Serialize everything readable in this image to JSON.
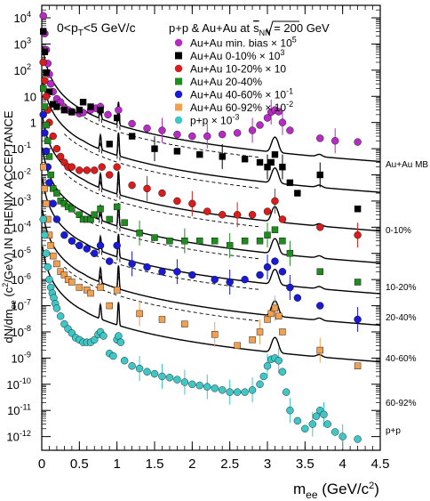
{
  "chart_data": {
    "type": "scatter",
    "title": "p+p & Au+Au at √sNN = 200 GeV",
    "subtitle": "0<pT<5 GeV/c",
    "title_prefix": "p+p & Au+Au at",
    "title_sqrt": "s",
    "title_sqrt_sub": "NN",
    "title_suffix": " = 200 GeV",
    "subtitle_pre": "0<p",
    "subtitle_sub": "T",
    "subtitle_post": "<5 GeV/c",
    "xlabel": "mee (GeV/c2)",
    "xlabel_main": "m",
    "xlabel_sub": "ee",
    "xlabel_unit_pre": " (GeV/c",
    "xlabel_unit_sup": "2",
    "xlabel_unit_post": ")",
    "ylabel": "dN/dmee (c2/GeV) IN PHENIX ACCEPTANCE",
    "ylabel_pre": "dN/dm",
    "ylabel_sub": "ee",
    "ylabel_mid": " (c",
    "ylabel_sup": "2",
    "ylabel_post": "/GeV) IN PHENIX ACCEPTANCE",
    "xlim": [
      0,
      4.5
    ],
    "ylim": [
      3e-13,
      30000
    ],
    "yscale": "log",
    "x_ticks": [
      0,
      0.5,
      1,
      1.5,
      2,
      2.5,
      3,
      3.5,
      4,
      4.5
    ],
    "x_tick_labels": [
      "0",
      "0.5",
      "1",
      "1.5",
      "2",
      "2.5",
      "3",
      "3.5",
      "4",
      "4.5"
    ],
    "y_ticks": [
      1e-12,
      1e-11,
      1e-10,
      1e-09,
      1e-08,
      1e-07,
      1e-06,
      1e-05,
      0.0001,
      0.001,
      0.01,
      0.1,
      1,
      10,
      100,
      1000,
      10000
    ],
    "y_tick_labels": [
      {
        "base": "10",
        "exp": "-12"
      },
      {
        "base": "10",
        "exp": "-11"
      },
      {
        "base": "10",
        "exp": "-10"
      },
      {
        "base": "10",
        "exp": "-9"
      },
      {
        "base": "10",
        "exp": "-8"
      },
      {
        "base": "10",
        "exp": "-7"
      },
      {
        "base": "10",
        "exp": "-6"
      },
      {
        "base": "10",
        "exp": "-5"
      },
      {
        "base": "10",
        "exp": "-4"
      },
      {
        "base": "10",
        "exp": "-3"
      },
      {
        "base": "10",
        "exp": "-2"
      },
      {
        "base": "10",
        "exp": "-1"
      },
      {
        "base": "1",
        "exp": ""
      },
      {
        "base": "10",
        "exp": ""
      },
      {
        "base": "10",
        "exp": "2"
      },
      {
        "base": "10",
        "exp": "3"
      },
      {
        "base": "10",
        "exp": "4"
      }
    ],
    "legend_position": "top-right",
    "series": [
      {
        "name": "Au+Au min. bias × 10^5",
        "legend_text": "Au+Au min. bias ×",
        "legend_exp": "10^5",
        "marker": "circle",
        "color": "#b52bc4",
        "side_label": "Au+Au MB",
        "x": [
          0.02,
          0.04,
          0.06,
          0.08,
          0.1,
          0.12,
          0.15,
          0.2,
          0.25,
          0.3,
          0.35,
          0.4,
          0.5,
          0.55,
          0.65,
          0.72,
          0.78,
          0.88,
          1.02,
          1.2,
          1.4,
          1.6,
          1.8,
          2.0,
          2.2,
          2.4,
          2.6,
          2.8,
          2.9,
          3.0,
          3.05,
          3.1,
          3.15,
          3.2,
          3.3,
          3.7,
          3.9,
          4.2
        ],
        "y": [
          12000,
          2500,
          600,
          180,
          70,
          30,
          15,
          8,
          6,
          3.5,
          3,
          2.6,
          2.2,
          2.4,
          3.0,
          3.5,
          4.0,
          2.0,
          3.0,
          0.9,
          0.6,
          0.5,
          0.35,
          0.3,
          0.3,
          0.35,
          0.4,
          0.5,
          0.8,
          1.5,
          2.5,
          3.0,
          2.6,
          1.0,
          0.5,
          0.25,
          0.2,
          0.18
        ]
      },
      {
        "name": "Au+Au 0-10% × 10^3",
        "legend_text": "Au+Au 0-10% ×",
        "legend_exp": "10^3",
        "marker": "square",
        "color": "#000000",
        "side_label": "0-10%",
        "x": [
          0.02,
          0.04,
          0.06,
          0.1,
          0.15,
          0.2,
          0.3,
          0.4,
          0.5,
          0.55,
          0.65,
          0.78,
          0.9,
          1.0,
          1.2,
          1.5,
          1.8,
          2.1,
          2.4,
          2.7,
          2.9,
          3.0,
          3.05,
          3.1,
          3.2,
          3.3,
          3.4,
          3.7,
          4.2
        ],
        "y": [
          3000,
          500,
          80,
          15,
          5,
          4,
          3,
          2.5,
          3,
          6,
          4,
          3,
          0.15,
          1.5,
          0.3,
          0.1,
          0.08,
          0.06,
          0.05,
          0.04,
          0.03,
          0.02,
          0.03,
          0.06,
          0.02,
          0.005,
          0.002,
          0.01,
          0.0005
        ]
      },
      {
        "name": "Au+Au 10-20% × 10",
        "legend_text": "Au+Au 10-20% × 10",
        "legend_exp": "",
        "marker": "circle",
        "color": "#d91c1c",
        "side_label": "10-20%",
        "x": [
          0.02,
          0.04,
          0.06,
          0.08,
          0.1,
          0.15,
          0.2,
          0.25,
          0.3,
          0.35,
          0.4,
          0.5,
          0.6,
          0.7,
          0.8,
          0.9,
          1.0,
          1.2,
          1.4,
          1.6,
          1.8,
          2.0,
          2.2,
          2.4,
          2.6,
          2.8,
          3.0,
          3.1,
          3.2,
          3.7,
          4.2
        ],
        "y": [
          200,
          40,
          10,
          3,
          1,
          0.3,
          0.1,
          0.05,
          0.03,
          0.02,
          0.02,
          0.015,
          0.015,
          0.015,
          0.02,
          0.01,
          0.02,
          0.004,
          0.003,
          0.002,
          0.001,
          0.0008,
          0.0004,
          0.0003,
          0.0003,
          0.0003,
          0.0004,
          0.001,
          0.0002,
          0.0001,
          5e-05
        ]
      },
      {
        "name": "Au+Au 20-40%",
        "legend_text": "Au+Au 20-40%",
        "legend_exp": "",
        "marker": "square",
        "color": "#1e8c1e",
        "side_label": "20-40%",
        "x": [
          0.02,
          0.04,
          0.06,
          0.08,
          0.1,
          0.12,
          0.15,
          0.2,
          0.25,
          0.3,
          0.35,
          0.4,
          0.5,
          0.55,
          0.6,
          0.65,
          0.7,
          0.78,
          0.9,
          1.0,
          1.1,
          1.3,
          1.5,
          1.7,
          1.9,
          2.1,
          2.3,
          2.5,
          2.7,
          2.9,
          3.0,
          3.1,
          3.2,
          3.3,
          3.7,
          4.2
        ],
        "y": [
          20,
          4,
          0.8,
          0.2,
          0.05,
          0.01,
          0.003,
          0.002,
          0.001,
          0.0008,
          0.0006,
          0.0005,
          0.0003,
          0.0002,
          0.0002,
          0.0002,
          0.0003,
          0.0005,
          0.0002,
          0.0006,
          0.00015,
          6e-05,
          4e-05,
          3e-05,
          3e-05,
          3e-05,
          3e-05,
          2e-05,
          3e-05,
          3e-05,
          5e-05,
          8e-05,
          3e-05,
          1e-05,
          2e-06,
          8e-07
        ]
      },
      {
        "name": "Au+Au 40-60% × 10^-1",
        "legend_text": "Au+Au 40-60% ×",
        "legend_exp": "10^-1",
        "marker": "circle",
        "color": "#1a1ad6",
        "side_label": "40-60%",
        "x": [
          0.02,
          0.04,
          0.06,
          0.08,
          0.1,
          0.15,
          0.2,
          0.3,
          0.4,
          0.5,
          0.6,
          0.7,
          0.78,
          0.9,
          1.0,
          1.2,
          1.4,
          1.6,
          1.8,
          2.0,
          2.3,
          2.5,
          2.7,
          2.9,
          3.0,
          3.1,
          3.2,
          3.3,
          3.4,
          3.7,
          4.2
        ],
        "y": [
          2,
          0.4,
          0.08,
          0.02,
          0.005,
          0.0008,
          0.0002,
          5e-05,
          3e-05,
          2e-05,
          1.5e-05,
          1e-05,
          2e-05,
          5e-06,
          2e-05,
          4e-06,
          3e-06,
          2e-06,
          2e-06,
          1.5e-06,
          1e-06,
          8e-07,
          1e-06,
          1.5e-06,
          3e-06,
          5e-06,
          2e-06,
          5e-07,
          2e-07,
          1e-07,
          3e-08
        ]
      },
      {
        "name": "Au+Au 60-92% × 10^-2",
        "legend_text": "Au+Au 60-92% ×",
        "legend_exp": "10^-2",
        "marker": "square",
        "color": "#f0a050",
        "side_label": "60-92%",
        "x": [
          0.02,
          0.04,
          0.06,
          0.08,
          0.1,
          0.12,
          0.15,
          0.2,
          0.25,
          0.3,
          0.35,
          0.4,
          0.5,
          0.6,
          0.65,
          0.78,
          0.9,
          1.0,
          1.3,
          1.6,
          1.9,
          2.3,
          2.6,
          2.8,
          2.9,
          3.0,
          3.05,
          3.1,
          3.15,
          3.2,
          3.7,
          4.2
        ],
        "y": [
          0.02,
          0.003,
          0.0008,
          0.0002,
          5e-05,
          2e-05,
          8e-06,
          4e-06,
          2e-06,
          1.5e-06,
          1e-06,
          8e-07,
          5e-07,
          4e-07,
          3e-07,
          5e-07,
          1e-07,
          4e-07,
          5e-08,
          3e-08,
          2e-08,
          8e-09,
          3e-09,
          5e-09,
          1e-08,
          3e-08,
          5e-08,
          8e-08,
          4e-08,
          1e-08,
          2e-09,
          5e-10
        ]
      },
      {
        "name": "p+p × 10^-3",
        "legend_text": "p+p ×",
        "legend_exp": "10^-3",
        "marker": "circle",
        "color": "#3fc6c6",
        "side_label": "p+p",
        "x": [
          0.02,
          0.04,
          0.06,
          0.08,
          0.1,
          0.12,
          0.14,
          0.16,
          0.18,
          0.2,
          0.25,
          0.3,
          0.35,
          0.4,
          0.45,
          0.5,
          0.55,
          0.6,
          0.65,
          0.7,
          0.75,
          0.78,
          0.82,
          0.9,
          0.95,
          1.0,
          1.02,
          1.05,
          1.1,
          1.2,
          1.3,
          1.4,
          1.5,
          1.6,
          1.7,
          1.8,
          1.9,
          2.0,
          2.1,
          2.2,
          2.3,
          2.4,
          2.5,
          2.6,
          2.7,
          2.8,
          2.9,
          2.95,
          3.0,
          3.05,
          3.1,
          3.15,
          3.2,
          3.25,
          3.3,
          3.4,
          3.5,
          3.6,
          3.65,
          3.7,
          3.75,
          3.8,
          3.9,
          4.0,
          4.2
        ],
        "y": [
          0.0002,
          5e-05,
          1e-05,
          3e-06,
          1e-06,
          5e-07,
          3e-07,
          2e-07,
          1.2e-07,
          8e-08,
          4e-08,
          2e-08,
          1.3e-08,
          9e-09,
          6e-09,
          5e-09,
          4e-09,
          4e-09,
          4e-09,
          5e-09,
          8e-09,
          1e-08,
          7e-09,
          1.5e-09,
          1.2e-09,
          5e-09,
          7e-09,
          4e-09,
          8e-10,
          5e-10,
          4e-10,
          3e-10,
          2.5e-10,
          2e-10,
          1.8e-10,
          1.5e-10,
          1.2e-10,
          1e-10,
          9e-11,
          8e-11,
          7e-11,
          6e-11,
          5e-11,
          5e-11,
          5e-11,
          6e-11,
          1e-10,
          2e-10,
          5e-10,
          9e-10,
          1e-09,
          8e-10,
          3e-10,
          5e-11,
          1e-11,
          4e-12,
          2e-12,
          3e-12,
          6e-12,
          1e-11,
          7e-12,
          3e-12,
          1.5e-12,
          1e-12,
          8e-13
        ]
      }
    ]
  }
}
